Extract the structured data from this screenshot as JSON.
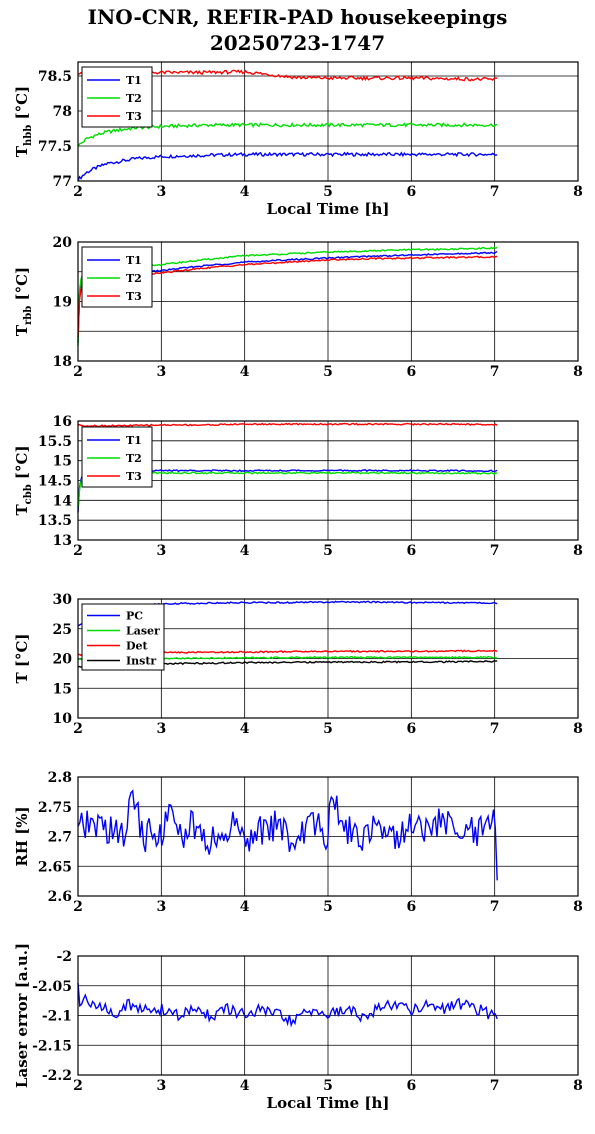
{
  "page": {
    "title_line1": "INO-CNR, REFIR-PAD housekeepings",
    "title_line2": "20250723-1747"
  },
  "chart_data": [
    {
      "type": "line",
      "ylabel_main": "T",
      "ylabel_sub": "hbb",
      "ylabel_tail": " [°C]",
      "xlabel": "Local Time [h]",
      "xlim": [
        2,
        8
      ],
      "ylim": [
        77,
        78.7
      ],
      "xticks": [
        2,
        3,
        4,
        5,
        6,
        7,
        8
      ],
      "yticks": [
        77,
        77.5,
        78,
        78.5
      ],
      "ytick_labels": [
        "77",
        "77.5",
        "78",
        "78.5"
      ],
      "grid": true,
      "legend_position": "top-left",
      "series": [
        {
          "name": "T1",
          "color": "#0000ff",
          "x": [
            2.0,
            2.1,
            2.2,
            2.35,
            2.5,
            2.7,
            3.0,
            3.3,
            3.6,
            4.0,
            4.5,
            5.0,
            5.5,
            6.0,
            6.5,
            7.0,
            7.03
          ],
          "y": [
            77.02,
            77.12,
            77.18,
            77.25,
            77.28,
            77.32,
            77.35,
            77.36,
            77.37,
            77.38,
            77.38,
            77.38,
            77.38,
            77.38,
            77.38,
            77.38,
            77.38
          ]
        },
        {
          "name": "T2",
          "color": "#00dd00",
          "x": [
            2.0,
            2.1,
            2.2,
            2.35,
            2.5,
            2.7,
            3.0,
            3.3,
            3.6,
            4.0,
            4.5,
            5.0,
            5.5,
            6.0,
            6.5,
            7.0,
            7.03
          ],
          "y": [
            77.5,
            77.6,
            77.65,
            77.7,
            77.73,
            77.76,
            77.78,
            77.79,
            77.8,
            77.8,
            77.8,
            77.8,
            77.8,
            77.8,
            77.8,
            77.8,
            77.8
          ]
        },
        {
          "name": "T3",
          "color": "#ff0000",
          "x": [
            2.0,
            2.1,
            2.3,
            2.6,
            3.0,
            3.5,
            4.0,
            4.3,
            4.6,
            5.0,
            5.5,
            6.0,
            6.5,
            7.0,
            7.03
          ],
          "y": [
            78.55,
            78.56,
            78.55,
            78.54,
            78.55,
            78.55,
            78.56,
            78.52,
            78.48,
            78.47,
            78.47,
            78.47,
            78.46,
            78.45,
            78.46
          ]
        }
      ]
    },
    {
      "type": "line",
      "ylabel_main": "T",
      "ylabel_sub": "rbb",
      "ylabel_tail": " [°C]",
      "xlabel": "",
      "xlim": [
        2,
        8
      ],
      "ylim": [
        18,
        20
      ],
      "xticks": [
        2,
        3,
        4,
        5,
        6,
        7,
        8
      ],
      "yticks": [
        18,
        18.5,
        19,
        19.5,
        20
      ],
      "ytick_labels": [
        "18",
        "",
        "19",
        "",
        "20"
      ],
      "grid": true,
      "legend_position": "top-left",
      "series": [
        {
          "name": "T1",
          "color": "#0000ff",
          "x": [
            2.0,
            2.02,
            2.05,
            2.1,
            2.2,
            2.4,
            2.7,
            3.0,
            3.5,
            4.0,
            4.5,
            5.0,
            5.5,
            6.0,
            6.5,
            7.0,
            7.03
          ],
          "y": [
            18.3,
            19.2,
            19.35,
            19.4,
            19.42,
            19.45,
            19.48,
            19.52,
            19.6,
            19.66,
            19.7,
            19.73,
            19.76,
            19.78,
            19.8,
            19.82,
            19.83
          ]
        },
        {
          "name": "T2",
          "color": "#00dd00",
          "x": [
            2.0,
            2.02,
            2.05,
            2.1,
            2.2,
            2.4,
            2.7,
            3.0,
            3.5,
            4.0,
            4.5,
            5.0,
            5.5,
            6.0,
            6.5,
            7.0,
            7.03
          ],
          "y": [
            18.25,
            19.3,
            19.45,
            19.5,
            19.52,
            19.55,
            19.58,
            19.62,
            19.7,
            19.77,
            19.8,
            19.83,
            19.85,
            19.87,
            19.88,
            19.9,
            19.9
          ]
        },
        {
          "name": "T3",
          "color": "#ff0000",
          "x": [
            2.0,
            2.02,
            2.05,
            2.1,
            2.2,
            2.4,
            2.7,
            3.0,
            3.5,
            4.0,
            4.5,
            5.0,
            5.5,
            6.0,
            6.5,
            7.0,
            7.03
          ],
          "y": [
            18.4,
            19.1,
            19.3,
            19.35,
            19.38,
            19.42,
            19.45,
            19.48,
            19.56,
            19.62,
            19.66,
            19.7,
            19.72,
            19.73,
            19.74,
            19.75,
            19.76
          ]
        }
      ]
    },
    {
      "type": "line",
      "ylabel_main": "T",
      "ylabel_sub": "cbb",
      "ylabel_tail": " [°C]",
      "xlabel": "",
      "xlim": [
        2,
        8
      ],
      "ylim": [
        13,
        16
      ],
      "xticks": [
        2,
        3,
        4,
        5,
        6,
        7,
        8
      ],
      "yticks": [
        13,
        13.5,
        14,
        14.5,
        15,
        15.5,
        16
      ],
      "ytick_labels": [
        "13",
        "13.5",
        "14",
        "14.5",
        "15",
        "15.5",
        "16"
      ],
      "grid": true,
      "legend_position": "top-left",
      "series": [
        {
          "name": "T1",
          "color": "#0000ff",
          "x": [
            2.0,
            2.02,
            2.05,
            2.1,
            2.3,
            2.6,
            3.0,
            3.5,
            4.0,
            5.0,
            6.0,
            7.0,
            7.03
          ],
          "y": [
            13.7,
            14.4,
            14.65,
            14.72,
            14.74,
            14.75,
            14.75,
            14.75,
            14.75,
            14.75,
            14.75,
            14.74,
            14.74
          ]
        },
        {
          "name": "T2",
          "color": "#00dd00",
          "x": [
            2.0,
            2.02,
            2.05,
            2.1,
            2.3,
            2.6,
            3.0,
            3.5,
            4.0,
            5.0,
            6.0,
            7.0,
            7.03
          ],
          "y": [
            13.8,
            14.3,
            14.6,
            14.66,
            14.68,
            14.69,
            14.69,
            14.69,
            14.69,
            14.69,
            14.69,
            14.68,
            14.68
          ]
        },
        {
          "name": "T3",
          "color": "#ff0000",
          "x": [
            2.0,
            2.1,
            2.5,
            3.0,
            3.5,
            4.0,
            4.5,
            5.0,
            5.5,
            6.0,
            6.5,
            7.0,
            7.03
          ],
          "y": [
            15.9,
            15.88,
            15.88,
            15.9,
            15.9,
            15.92,
            15.92,
            15.92,
            15.92,
            15.92,
            15.92,
            15.91,
            15.91
          ]
        }
      ]
    },
    {
      "type": "line",
      "ylabel_main": "T [°C]",
      "ylabel_sub": "",
      "ylabel_tail": "",
      "xlabel": "",
      "xlim": [
        2,
        8
      ],
      "ylim": [
        10,
        30
      ],
      "xticks": [
        2,
        3,
        4,
        5,
        6,
        7,
        8
      ],
      "yticks": [
        10,
        15,
        20,
        25,
        30
      ],
      "ytick_labels": [
        "10",
        "15",
        "20",
        "25",
        "30"
      ],
      "grid": true,
      "legend_position": "top-left",
      "series": [
        {
          "name": "PC",
          "color": "#0000ff",
          "x": [
            2.0,
            2.1,
            2.3,
            2.6,
            3.0,
            3.5,
            4.0,
            4.5,
            5.0,
            5.5,
            6.0,
            6.5,
            7.0,
            7.03
          ],
          "y": [
            25.5,
            26.5,
            27.8,
            28.8,
            29.2,
            29.3,
            29.4,
            29.4,
            29.5,
            29.5,
            29.4,
            29.4,
            29.3,
            29.3
          ]
        },
        {
          "name": "Laser",
          "color": "#00dd00",
          "x": [
            2.0,
            2.5,
            3.0,
            4.0,
            5.0,
            6.0,
            7.0,
            7.03
          ],
          "y": [
            19.8,
            19.9,
            20.0,
            20.1,
            20.2,
            20.2,
            20.2,
            20.2
          ]
        },
        {
          "name": "Det",
          "color": "#ff0000",
          "x": [
            2.0,
            2.5,
            3.0,
            4.0,
            5.0,
            6.0,
            7.0,
            7.03
          ],
          "y": [
            20.6,
            20.8,
            21.0,
            21.1,
            21.2,
            21.2,
            21.3,
            21.3
          ]
        },
        {
          "name": "Instr",
          "color": "#000000",
          "x": [
            2.0,
            2.5,
            3.0,
            4.0,
            5.0,
            6.0,
            7.0,
            7.03
          ],
          "y": [
            18.6,
            18.9,
            19.1,
            19.3,
            19.4,
            19.4,
            19.5,
            19.5
          ]
        }
      ]
    },
    {
      "type": "line",
      "ylabel_main": "RH [%]",
      "ylabel_sub": "",
      "ylabel_tail": "",
      "xlabel": "",
      "xlim": [
        2,
        8
      ],
      "ylim": [
        2.6,
        2.8
      ],
      "xticks": [
        2,
        3,
        4,
        5,
        6,
        7,
        8
      ],
      "yticks": [
        2.6,
        2.65,
        2.7,
        2.75,
        2.8
      ],
      "ytick_labels": [
        "2.6",
        "2.65",
        "2.7",
        "2.75",
        "2.8"
      ],
      "grid": true,
      "legend_position": "none",
      "series": [
        {
          "name": "",
          "color": "#0000ff",
          "x": [
            2.0,
            2.2,
            2.4,
            2.6,
            2.62,
            2.8,
            3.0,
            3.1,
            3.2,
            3.4,
            3.5,
            3.7,
            3.9,
            4.0,
            4.2,
            4.4,
            4.6,
            4.8,
            5.0,
            5.05,
            5.2,
            5.4,
            5.6,
            5.8,
            6.0,
            6.2,
            6.4,
            6.6,
            6.8,
            7.0,
            7.03
          ],
          "y": [
            2.71,
            2.72,
            2.71,
            2.7,
            2.78,
            2.7,
            2.71,
            2.74,
            2.7,
            2.72,
            2.69,
            2.7,
            2.72,
            2.7,
            2.71,
            2.72,
            2.69,
            2.72,
            2.7,
            2.78,
            2.71,
            2.7,
            2.73,
            2.7,
            2.72,
            2.71,
            2.73,
            2.7,
            2.71,
            2.72,
            2.65
          ]
        }
      ]
    },
    {
      "type": "line",
      "ylabel_main": "Laser error [a.u.]",
      "ylabel_sub": "",
      "ylabel_tail": "",
      "xlabel": "Local Time [h]",
      "xlim": [
        2,
        8
      ],
      "ylim": [
        -2.2,
        -2
      ],
      "xticks": [
        2,
        3,
        4,
        5,
        6,
        7,
        8
      ],
      "yticks": [
        -2.2,
        -2.15,
        -2.1,
        -2.05,
        -2
      ],
      "ytick_labels": [
        "-2.2",
        "-2.15",
        "-2.1",
        "-2.05",
        "-2"
      ],
      "grid": true,
      "legend_position": "none",
      "series": [
        {
          "name": "",
          "color": "#0000ff",
          "x": [
            2.0,
            2.01,
            2.1,
            2.2,
            2.3,
            2.4,
            2.5,
            2.6,
            2.7,
            2.8,
            2.9,
            3.0,
            3.2,
            3.4,
            3.6,
            3.8,
            4.0,
            4.2,
            4.4,
            4.6,
            4.8,
            5.0,
            5.2,
            5.4,
            5.6,
            5.8,
            6.0,
            6.2,
            6.4,
            6.6,
            6.8,
            7.0,
            7.03
          ],
          "y": [
            -2.05,
            -2.08,
            -2.07,
            -2.09,
            -2.08,
            -2.1,
            -2.09,
            -2.08,
            -2.09,
            -2.09,
            -2.09,
            -2.09,
            -2.1,
            -2.09,
            -2.1,
            -2.09,
            -2.1,
            -2.09,
            -2.1,
            -2.11,
            -2.09,
            -2.1,
            -2.09,
            -2.1,
            -2.09,
            -2.08,
            -2.09,
            -2.08,
            -2.09,
            -2.08,
            -2.09,
            -2.1,
            -2.1
          ]
        }
      ]
    }
  ]
}
